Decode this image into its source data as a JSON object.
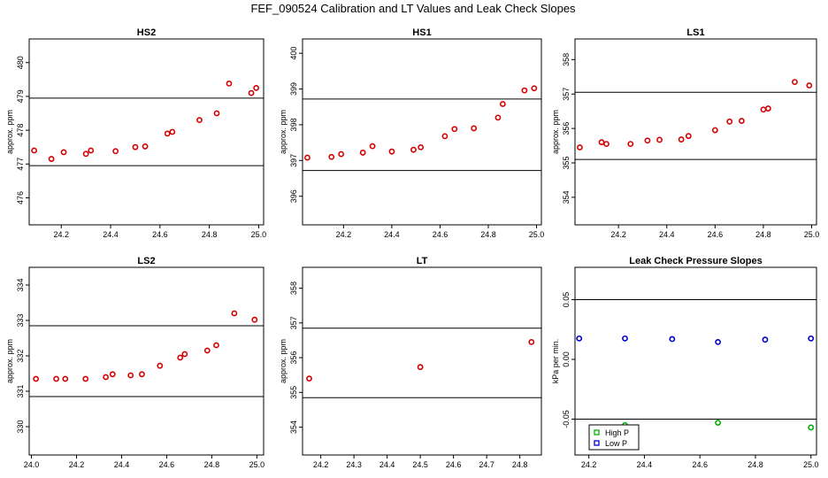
{
  "figure": {
    "title": "FEF_090524  Calibration and LT Values and Leak Check Slopes"
  },
  "chart_data": [
    {
      "type": "scatter",
      "title": "HS2",
      "ylabel": "approx. ppm",
      "xlim": [
        24.07,
        25.02
      ],
      "ylim": [
        475.2,
        480.7
      ],
      "xticks": [
        "24.2",
        "24.4",
        "24.6",
        "24.8",
        "25.0"
      ],
      "yticks": [
        "476",
        "477",
        "478",
        "479",
        "480"
      ],
      "hlines": [
        478.95,
        476.95
      ],
      "series": [
        {
          "color": "#d40000",
          "points": [
            [
              24.09,
              477.4
            ],
            [
              24.16,
              477.15
            ],
            [
              24.21,
              477.35
            ],
            [
              24.3,
              477.3
            ],
            [
              24.32,
              477.4
            ],
            [
              24.42,
              477.38
            ],
            [
              24.5,
              477.5
            ],
            [
              24.54,
              477.52
            ],
            [
              24.63,
              477.9
            ],
            [
              24.65,
              477.95
            ],
            [
              24.76,
              478.3
            ],
            [
              24.83,
              478.5
            ],
            [
              24.88,
              479.38
            ],
            [
              24.97,
              479.1
            ],
            [
              24.99,
              479.25
            ]
          ]
        }
      ]
    },
    {
      "type": "scatter",
      "title": "HS1",
      "ylabel": "approx. ppm",
      "xlim": [
        24.03,
        25.02
      ],
      "ylim": [
        395.2,
        400.4
      ],
      "xticks": [
        "24.2",
        "24.4",
        "24.6",
        "24.8",
        "25.0"
      ],
      "yticks": [
        "396",
        "397",
        "398",
        "399",
        "400"
      ],
      "hlines": [
        398.72,
        396.72
      ],
      "series": [
        {
          "color": "#d40000",
          "points": [
            [
              24.05,
              397.08
            ],
            [
              24.15,
              397.1
            ],
            [
              24.19,
              397.18
            ],
            [
              24.28,
              397.22
            ],
            [
              24.32,
              397.4
            ],
            [
              24.4,
              397.25
            ],
            [
              24.49,
              397.3
            ],
            [
              24.52,
              397.37
            ],
            [
              24.62,
              397.68
            ],
            [
              24.66,
              397.88
            ],
            [
              24.74,
              397.9
            ],
            [
              24.84,
              398.2
            ],
            [
              24.86,
              398.58
            ],
            [
              24.95,
              398.96
            ],
            [
              24.99,
              399.02
            ]
          ]
        }
      ]
    },
    {
      "type": "scatter",
      "title": "LS1",
      "ylabel": "approx. ppm",
      "xlim": [
        24.02,
        25.02
      ],
      "ylim": [
        353.2,
        358.6
      ],
      "xticks": [
        "24.2",
        "24.4",
        "24.6",
        "24.8",
        "25.0"
      ],
      "yticks": [
        "354",
        "355",
        "356",
        "357",
        "358"
      ],
      "hlines": [
        357.05,
        355.1
      ],
      "series": [
        {
          "color": "#d40000",
          "points": [
            [
              24.04,
              355.45
            ],
            [
              24.13,
              355.6
            ],
            [
              24.15,
              355.55
            ],
            [
              24.25,
              355.55
            ],
            [
              24.32,
              355.65
            ],
            [
              24.37,
              355.67
            ],
            [
              24.46,
              355.68
            ],
            [
              24.49,
              355.78
            ],
            [
              24.6,
              355.95
            ],
            [
              24.66,
              356.2
            ],
            [
              24.71,
              356.22
            ],
            [
              24.8,
              356.55
            ],
            [
              24.82,
              356.58
            ],
            [
              24.93,
              357.35
            ],
            [
              24.99,
              357.25
            ]
          ]
        }
      ]
    },
    {
      "type": "scatter",
      "title": "LS2",
      "ylabel": "approx. ppm",
      "xlim": [
        23.99,
        25.03
      ],
      "ylim": [
        329.2,
        334.5
      ],
      "xticks": [
        "24.0",
        "24.2",
        "24.4",
        "24.6",
        "24.8",
        "25.0"
      ],
      "yticks": [
        "330",
        "331",
        "332",
        "333",
        "334"
      ],
      "hlines": [
        332.85,
        330.85
      ],
      "series": [
        {
          "color": "#d40000",
          "points": [
            [
              24.02,
              331.35
            ],
            [
              24.11,
              331.35
            ],
            [
              24.15,
              331.35
            ],
            [
              24.24,
              331.35
            ],
            [
              24.33,
              331.4
            ],
            [
              24.36,
              331.48
            ],
            [
              24.44,
              331.45
            ],
            [
              24.49,
              331.48
            ],
            [
              24.57,
              331.72
            ],
            [
              24.66,
              331.95
            ],
            [
              24.68,
              332.05
            ],
            [
              24.78,
              332.15
            ],
            [
              24.82,
              332.3
            ],
            [
              24.9,
              333.2
            ],
            [
              24.99,
              333.02
            ]
          ]
        }
      ]
    },
    {
      "type": "scatter",
      "title": "LT",
      "ylabel": "approx. ppm",
      "xlim": [
        24.145,
        24.865
      ],
      "ylim": [
        353.2,
        358.6
      ],
      "xticks": [
        "24.2",
        "24.3",
        "24.4",
        "24.5",
        "24.6",
        "24.7",
        "24.8"
      ],
      "yticks": [
        "354",
        "355",
        "356",
        "357",
        "358"
      ],
      "hlines": [
        356.85,
        354.85
      ],
      "series": [
        {
          "color": "#d40000",
          "points": [
            [
              24.165,
              355.4
            ],
            [
              24.5,
              355.73
            ],
            [
              24.835,
              356.45
            ]
          ]
        }
      ]
    },
    {
      "type": "scatter",
      "title": "Leak Check Pressure Slopes",
      "ylabel": "kPa per min.",
      "xlim": [
        24.15,
        25.02
      ],
      "ylim": [
        -0.08,
        0.077
      ],
      "xticks": [
        "24.2",
        "24.4",
        "24.6",
        "24.8",
        "25.0"
      ],
      "yticks": [
        "-0.05",
        "0.00",
        "0.05"
      ],
      "hlines": [
        0.05,
        -0.05
      ],
      "legend": "bottom-left",
      "series": [
        {
          "name": "High P",
          "color": "#00b000",
          "points": [
            [
              24.33,
              -0.055
            ],
            [
              24.665,
              -0.053
            ],
            [
              25.0,
              -0.057
            ]
          ]
        },
        {
          "name": "Low P",
          "color": "#0000d0",
          "points": [
            [
              24.165,
              0.0175
            ],
            [
              24.33,
              0.0175
            ],
            [
              24.5,
              0.017
            ],
            [
              24.665,
              0.0145
            ],
            [
              24.835,
              0.0165
            ],
            [
              25.0,
              0.0175
            ]
          ]
        }
      ]
    }
  ]
}
